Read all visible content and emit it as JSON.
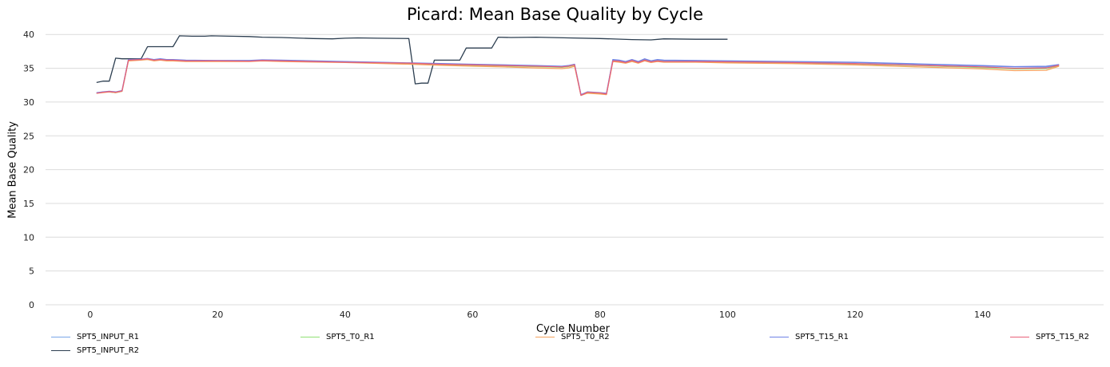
{
  "chart_data": {
    "type": "line",
    "title": "Picard: Mean Base Quality by Cycle",
    "xlabel": "Cycle Number",
    "ylabel": "Mean Base Quality",
    "xlim": [
      -7,
      159
    ],
    "ylim": [
      0,
      40.5
    ],
    "xticks": [
      0,
      20,
      40,
      60,
      80,
      100,
      120,
      140
    ],
    "yticks": [
      0,
      5,
      10,
      15,
      20,
      25,
      30,
      35,
      40
    ],
    "grid": "horizontal",
    "legend_position": "bottom",
    "series": [
      {
        "name": "SPT5_INPUT_R1",
        "color": "#7aa6e8",
        "points": [
          [
            1,
            31.3
          ],
          [
            2,
            31.5
          ],
          [
            3,
            31.5
          ],
          [
            4,
            31.4
          ],
          [
            5,
            31.6
          ],
          [
            6,
            36.2
          ],
          [
            8,
            36.3
          ],
          [
            9,
            36.4
          ],
          [
            10,
            36.2
          ],
          [
            11,
            36.3
          ],
          [
            12,
            36.2
          ],
          [
            13,
            36.2
          ],
          [
            15,
            36.1
          ],
          [
            20,
            36.1
          ],
          [
            25,
            36.1
          ],
          [
            27,
            36.2
          ],
          [
            30,
            36.1
          ],
          [
            40,
            35.95
          ],
          [
            50,
            35.75
          ],
          [
            55,
            35.6
          ],
          [
            60,
            35.5
          ],
          [
            65,
            35.4
          ],
          [
            70,
            35.3
          ],
          [
            74,
            35.2
          ],
          [
            75,
            35.3
          ],
          [
            76,
            35.5
          ],
          [
            77,
            31.0
          ],
          [
            78,
            31.4
          ],
          [
            80,
            31.3
          ],
          [
            81,
            31.2
          ],
          [
            82,
            36.2
          ],
          [
            83,
            36.1
          ],
          [
            84,
            35.9
          ],
          [
            85,
            36.2
          ],
          [
            86,
            35.9
          ],
          [
            87,
            36.3
          ],
          [
            88,
            36.0
          ],
          [
            89,
            36.2
          ],
          [
            90,
            36.1
          ],
          [
            95,
            36.1
          ],
          [
            100,
            36.0
          ],
          [
            110,
            35.95
          ],
          [
            120,
            35.85
          ],
          [
            130,
            35.6
          ],
          [
            140,
            35.35
          ],
          [
            145,
            35.2
          ],
          [
            150,
            35.2
          ],
          [
            152,
            35.5
          ]
        ]
      },
      {
        "name": "SPT5_INPUT_R2",
        "color": "#2c3e50",
        "points": [
          [
            1,
            32.9
          ],
          [
            2,
            33.1
          ],
          [
            3,
            33.1
          ],
          [
            4,
            36.5
          ],
          [
            5,
            36.4
          ],
          [
            6,
            36.4
          ],
          [
            8,
            36.4
          ],
          [
            9,
            38.2
          ],
          [
            10,
            38.2
          ],
          [
            12,
            38.2
          ],
          [
            13,
            38.2
          ],
          [
            14,
            39.8
          ],
          [
            16,
            39.75
          ],
          [
            18,
            39.75
          ],
          [
            19,
            39.8
          ],
          [
            22,
            39.75
          ],
          [
            25,
            39.7
          ],
          [
            27,
            39.6
          ],
          [
            30,
            39.55
          ],
          [
            35,
            39.4
          ],
          [
            38,
            39.35
          ],
          [
            40,
            39.45
          ],
          [
            42,
            39.5
          ],
          [
            45,
            39.45
          ],
          [
            50,
            39.4
          ],
          [
            51,
            32.7
          ],
          [
            52,
            32.8
          ],
          [
            53,
            32.8
          ],
          [
            54,
            36.2
          ],
          [
            56,
            36.2
          ],
          [
            58,
            36.2
          ],
          [
            59,
            38.0
          ],
          [
            61,
            38.0
          ],
          [
            63,
            38.0
          ],
          [
            64,
            39.6
          ],
          [
            66,
            39.55
          ],
          [
            70,
            39.6
          ],
          [
            75,
            39.5
          ],
          [
            80,
            39.4
          ],
          [
            85,
            39.25
          ],
          [
            88,
            39.2
          ],
          [
            90,
            39.35
          ],
          [
            95,
            39.3
          ],
          [
            100,
            39.3
          ]
        ]
      },
      {
        "name": "SPT5_T0_R1",
        "color": "#90e073",
        "points": [
          [
            1,
            31.3
          ],
          [
            2,
            31.5
          ],
          [
            3,
            31.5
          ],
          [
            4,
            31.4
          ],
          [
            5,
            31.6
          ],
          [
            6,
            36.2
          ],
          [
            8,
            36.3
          ],
          [
            9,
            36.4
          ],
          [
            10,
            36.2
          ],
          [
            11,
            36.3
          ],
          [
            12,
            36.2
          ],
          [
            13,
            36.2
          ],
          [
            15,
            36.1
          ],
          [
            20,
            36.1
          ],
          [
            25,
            36.1
          ],
          [
            27,
            36.2
          ],
          [
            30,
            36.1
          ],
          [
            40,
            35.9
          ],
          [
            50,
            35.7
          ],
          [
            55,
            35.55
          ],
          [
            60,
            35.45
          ],
          [
            65,
            35.35
          ],
          [
            70,
            35.25
          ],
          [
            74,
            35.15
          ],
          [
            75,
            35.25
          ],
          [
            76,
            35.45
          ],
          [
            77,
            31.0
          ],
          [
            78,
            31.4
          ],
          [
            80,
            31.3
          ],
          [
            81,
            31.2
          ],
          [
            82,
            36.1
          ],
          [
            83,
            36.0
          ],
          [
            84,
            35.85
          ],
          [
            85,
            36.1
          ],
          [
            86,
            35.85
          ],
          [
            87,
            36.2
          ],
          [
            88,
            35.95
          ],
          [
            89,
            36.1
          ],
          [
            90,
            36.0
          ],
          [
            95,
            36.0
          ],
          [
            100,
            35.9
          ],
          [
            110,
            35.8
          ],
          [
            120,
            35.65
          ],
          [
            130,
            35.4
          ],
          [
            140,
            35.1
          ],
          [
            145,
            34.9
          ],
          [
            150,
            34.95
          ],
          [
            152,
            35.4
          ]
        ]
      },
      {
        "name": "SPT5_T0_R2",
        "color": "#f5a35c",
        "points": [
          [
            1,
            31.3
          ],
          [
            2,
            31.4
          ],
          [
            3,
            31.5
          ],
          [
            4,
            31.4
          ],
          [
            5,
            31.6
          ],
          [
            6,
            36.1
          ],
          [
            8,
            36.2
          ],
          [
            9,
            36.3
          ],
          [
            10,
            36.1
          ],
          [
            11,
            36.2
          ],
          [
            12,
            36.1
          ],
          [
            13,
            36.1
          ],
          [
            15,
            36.0
          ],
          [
            20,
            36.0
          ],
          [
            25,
            36.0
          ],
          [
            27,
            36.1
          ],
          [
            30,
            36.0
          ],
          [
            40,
            35.85
          ],
          [
            50,
            35.6
          ],
          [
            55,
            35.45
          ],
          [
            60,
            35.3
          ],
          [
            65,
            35.2
          ],
          [
            70,
            35.05
          ],
          [
            74,
            34.95
          ],
          [
            75,
            35.05
          ],
          [
            76,
            35.3
          ],
          [
            77,
            31.0
          ],
          [
            78,
            31.3
          ],
          [
            80,
            31.2
          ],
          [
            81,
            31.1
          ],
          [
            82,
            36.0
          ],
          [
            83,
            35.9
          ],
          [
            84,
            35.75
          ],
          [
            85,
            36.0
          ],
          [
            86,
            35.75
          ],
          [
            87,
            36.1
          ],
          [
            88,
            35.85
          ],
          [
            89,
            36.0
          ],
          [
            90,
            35.9
          ],
          [
            95,
            35.9
          ],
          [
            100,
            35.8
          ],
          [
            110,
            35.7
          ],
          [
            120,
            35.5
          ],
          [
            130,
            35.2
          ],
          [
            140,
            34.9
          ],
          [
            145,
            34.65
          ],
          [
            150,
            34.7
          ],
          [
            152,
            35.3
          ]
        ]
      },
      {
        "name": "SPT5_T15_R1",
        "color": "#6f82e6",
        "points": [
          [
            1,
            31.4
          ],
          [
            2,
            31.5
          ],
          [
            3,
            31.6
          ],
          [
            4,
            31.5
          ],
          [
            5,
            31.7
          ],
          [
            6,
            36.3
          ],
          [
            8,
            36.35
          ],
          [
            9,
            36.45
          ],
          [
            10,
            36.3
          ],
          [
            11,
            36.4
          ],
          [
            12,
            36.3
          ],
          [
            13,
            36.3
          ],
          [
            15,
            36.2
          ],
          [
            20,
            36.15
          ],
          [
            25,
            36.15
          ],
          [
            27,
            36.25
          ],
          [
            30,
            36.2
          ],
          [
            40,
            36.0
          ],
          [
            50,
            35.8
          ],
          [
            55,
            35.7
          ],
          [
            60,
            35.6
          ],
          [
            65,
            35.5
          ],
          [
            70,
            35.4
          ],
          [
            74,
            35.3
          ],
          [
            75,
            35.4
          ],
          [
            76,
            35.6
          ],
          [
            77,
            31.1
          ],
          [
            78,
            31.5
          ],
          [
            80,
            31.4
          ],
          [
            81,
            31.3
          ],
          [
            82,
            36.3
          ],
          [
            83,
            36.2
          ],
          [
            84,
            36.0
          ],
          [
            85,
            36.3
          ],
          [
            86,
            36.0
          ],
          [
            87,
            36.4
          ],
          [
            88,
            36.1
          ],
          [
            89,
            36.3
          ],
          [
            90,
            36.2
          ],
          [
            95,
            36.15
          ],
          [
            100,
            36.1
          ],
          [
            110,
            36.0
          ],
          [
            120,
            35.9
          ],
          [
            130,
            35.65
          ],
          [
            140,
            35.4
          ],
          [
            145,
            35.25
          ],
          [
            150,
            35.3
          ],
          [
            152,
            35.55
          ]
        ]
      },
      {
        "name": "SPT5_T15_R2",
        "color": "#e8607a",
        "points": [
          [
            1,
            31.3
          ],
          [
            2,
            31.45
          ],
          [
            3,
            31.55
          ],
          [
            4,
            31.45
          ],
          [
            5,
            31.65
          ],
          [
            6,
            36.2
          ],
          [
            8,
            36.3
          ],
          [
            9,
            36.4
          ],
          [
            10,
            36.2
          ],
          [
            11,
            36.3
          ],
          [
            12,
            36.2
          ],
          [
            13,
            36.2
          ],
          [
            15,
            36.1
          ],
          [
            20,
            36.1
          ],
          [
            25,
            36.05
          ],
          [
            27,
            36.15
          ],
          [
            30,
            36.1
          ],
          [
            40,
            35.9
          ],
          [
            50,
            35.75
          ],
          [
            55,
            35.6
          ],
          [
            60,
            35.5
          ],
          [
            65,
            35.4
          ],
          [
            70,
            35.3
          ],
          [
            74,
            35.2
          ],
          [
            75,
            35.3
          ],
          [
            76,
            35.5
          ],
          [
            77,
            31.0
          ],
          [
            78,
            31.45
          ],
          [
            80,
            31.35
          ],
          [
            81,
            31.2
          ],
          [
            82,
            36.1
          ],
          [
            83,
            36.05
          ],
          [
            84,
            35.85
          ],
          [
            85,
            36.15
          ],
          [
            86,
            35.85
          ],
          [
            87,
            36.2
          ],
          [
            88,
            35.95
          ],
          [
            89,
            36.1
          ],
          [
            90,
            36.0
          ],
          [
            95,
            36.0
          ],
          [
            100,
            35.95
          ],
          [
            110,
            35.85
          ],
          [
            120,
            35.7
          ],
          [
            130,
            35.45
          ],
          [
            140,
            35.2
          ],
          [
            145,
            35.0
          ],
          [
            150,
            35.05
          ],
          [
            152,
            35.45
          ]
        ]
      }
    ]
  },
  "legend": [
    {
      "label": "SPT5_INPUT_R1",
      "color": "#7aa6e8"
    },
    {
      "label": "SPT5_T0_R1",
      "color": "#90e073"
    },
    {
      "label": "SPT5_T0_R2",
      "color": "#f5a35c"
    },
    {
      "label": "SPT5_T15_R1",
      "color": "#6f82e6"
    },
    {
      "label": "SPT5_T15_R2",
      "color": "#e8607a"
    },
    {
      "label": "SPT5_INPUT_R2",
      "color": "#2c3e50"
    }
  ]
}
